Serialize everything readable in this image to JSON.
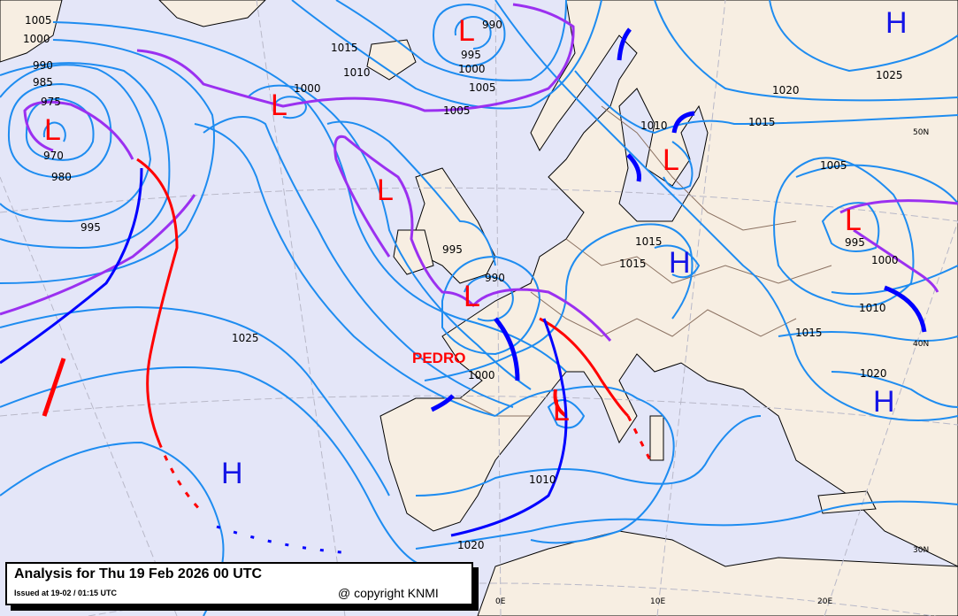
{
  "title": "Analysis for Thu 19 Feb 2026 00 UTC",
  "issued": "Issued at 19-02 / 01:15 UTC",
  "copyright": "@ copyright KNMI",
  "storm_name": "PEDRO",
  "colors": {
    "sea": "#e4e6f8",
    "land": "#f7eee2",
    "isobar": "#1e8cf0",
    "low": "#ff0000",
    "high": "#1414e6",
    "cold_front": "#0000ff",
    "warm_front": "#ff0000",
    "occluded_front": "#9b30f0"
  },
  "pressure_centers": {
    "low_symbol": "L",
    "high_symbol": "H"
  },
  "isobar_labels": [
    "1005",
    "1000",
    "990",
    "985",
    "975",
    "970",
    "980",
    "995",
    "1015",
    "1010",
    "1000",
    "990",
    "995",
    "1000",
    "1005",
    "1005",
    "1020",
    "1025",
    "1015",
    "1010",
    "1005",
    "995",
    "1000",
    "1010",
    "1015",
    "1020",
    "1015",
    "1015",
    "995",
    "990",
    "1000",
    "1010",
    "1020",
    "1025"
  ],
  "graticule_labels": {
    "lat": [
      "50N",
      "40N",
      "30N"
    ],
    "lon": [
      "0E",
      "10E",
      "20E"
    ]
  }
}
